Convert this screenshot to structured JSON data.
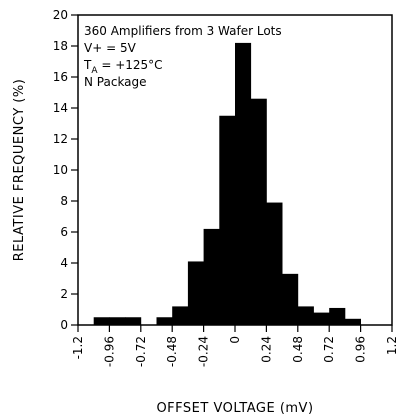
{
  "chart_data": {
    "type": "bar",
    "title": "",
    "xlabel": "OFFSET VOLTAGE (mV)",
    "ylabel": "RELATIVE FREQUENCY (%)",
    "xlim": [
      -1.2,
      1.2
    ],
    "ylim": [
      0,
      20
    ],
    "x_ticks": [
      "-1.2",
      "-0.96",
      "-0.72",
      "-0.48",
      "-0.24",
      "0",
      "0.24",
      "0.48",
      "0.72",
      "0.96",
      "1.2"
    ],
    "y_ticks": [
      "0",
      "2",
      "4",
      "6",
      "8",
      "10",
      "12",
      "14",
      "16",
      "18",
      "20"
    ],
    "bin_width": 0.12,
    "bins": [
      {
        "x0": -1.08,
        "x1": -0.96,
        "value": 0.5
      },
      {
        "x0": -0.96,
        "x1": -0.84,
        "value": 0.5
      },
      {
        "x0": -0.84,
        "x1": -0.72,
        "value": 0.5
      },
      {
        "x0": -0.72,
        "x1": -0.6,
        "value": 0
      },
      {
        "x0": -0.6,
        "x1": -0.48,
        "value": 0.5
      },
      {
        "x0": -0.48,
        "x1": -0.36,
        "value": 1.2
      },
      {
        "x0": -0.36,
        "x1": -0.24,
        "value": 4.1
      },
      {
        "x0": -0.24,
        "x1": -0.12,
        "value": 6.2
      },
      {
        "x0": -0.12,
        "x1": 0,
        "value": 13.5
      },
      {
        "x0": 0,
        "x1": 0.12,
        "value": 18.2
      },
      {
        "x0": 0.12,
        "x1": 0.24,
        "value": 14.6
      },
      {
        "x0": 0.24,
        "x1": 0.36,
        "value": 7.9
      },
      {
        "x0": 0.36,
        "x1": 0.48,
        "value": 3.3
      },
      {
        "x0": 0.48,
        "x1": 0.6,
        "value": 1.2
      },
      {
        "x0": 0.6,
        "x1": 0.72,
        "value": 0.8
      },
      {
        "x0": 0.72,
        "x1": 0.84,
        "value": 1.1
      },
      {
        "x0": 0.84,
        "x1": 0.96,
        "value": 0.4
      }
    ],
    "annotations": {
      "line1": "360 Amplifiers from 3 Wafer Lots",
      "line2": "V+ = 5V",
      "line3_main": "T",
      "line3_sub": "A",
      "line3_rest": " = +125°C",
      "line4": "N Package"
    },
    "grid": false,
    "legend": "none",
    "bar_color": "#000000"
  }
}
